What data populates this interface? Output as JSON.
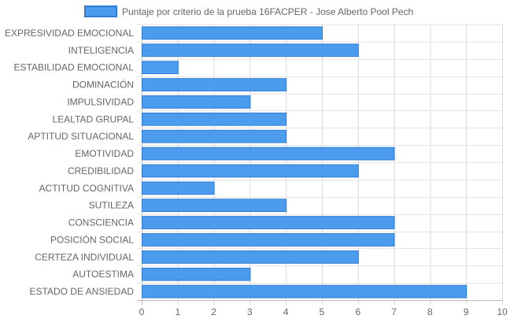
{
  "chart_data": {
    "type": "bar",
    "orientation": "horizontal",
    "categories": [
      "EXPRESIVIDAD EMOCIONAL",
      "INTELIGENCIA",
      "ESTABILIDAD EMOCIONAL",
      "DOMINACIÓN",
      "IMPULSIVIDAD",
      "LEALTAD GRUPAL",
      "APTITUD SITUACIONAL",
      "EMOTIVIDAD",
      "CREDIBILIDAD",
      "ACTITUD COGNITIVA",
      "SUTILEZA",
      "CONSCIENCIA",
      "POSICIÓN SOCIAL",
      "CERTEZA INDIVIDUAL",
      "AUTOESTIMA",
      "ESTADO DE ANSIEDAD"
    ],
    "series": [
      {
        "name": "Puntaje por criterio de la prueba 16FACPER - Jose Alberto Pool Pech",
        "values": [
          5,
          6,
          1,
          4,
          3,
          4,
          4,
          7,
          6,
          2,
          4,
          7,
          7,
          6,
          3,
          9
        ],
        "color": "#4c9ced",
        "border_color": "#2f7ad6"
      }
    ],
    "xlim": [
      0,
      10
    ],
    "xticks": [
      "0",
      "1",
      "2",
      "3",
      "4",
      "5",
      "6",
      "7",
      "8",
      "9",
      "10"
    ],
    "grid": true,
    "legend_position": "top"
  }
}
